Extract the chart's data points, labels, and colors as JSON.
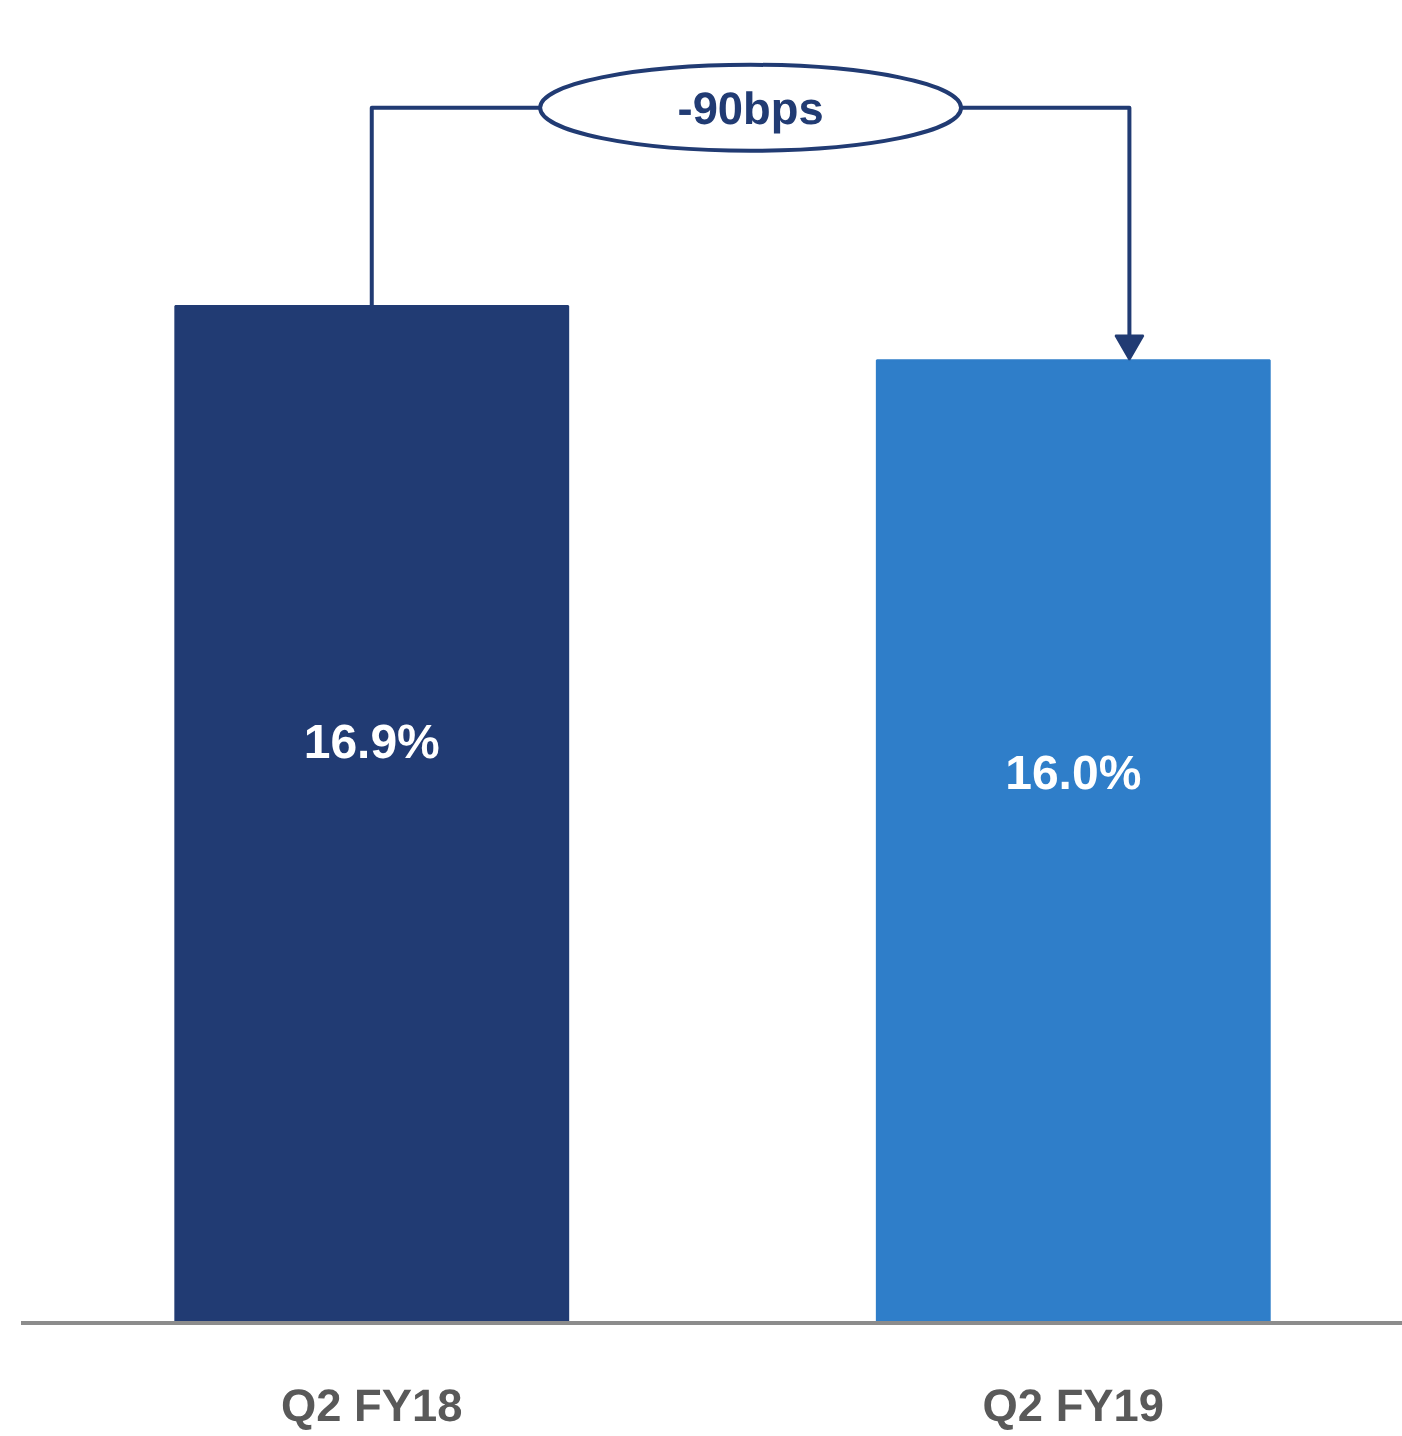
{
  "chart_data": {
    "type": "bar",
    "categories": [
      "Q2 FY18",
      "Q2 FY19"
    ],
    "values": [
      16.9,
      16.0
    ],
    "value_labels": [
      "16.9%",
      "16.0%"
    ],
    "colors": [
      "#213b73",
      "#2f7ec9"
    ],
    "tick_labels": "x",
    "grid": false,
    "annotations": [
      "-90bps"
    ]
  }
}
